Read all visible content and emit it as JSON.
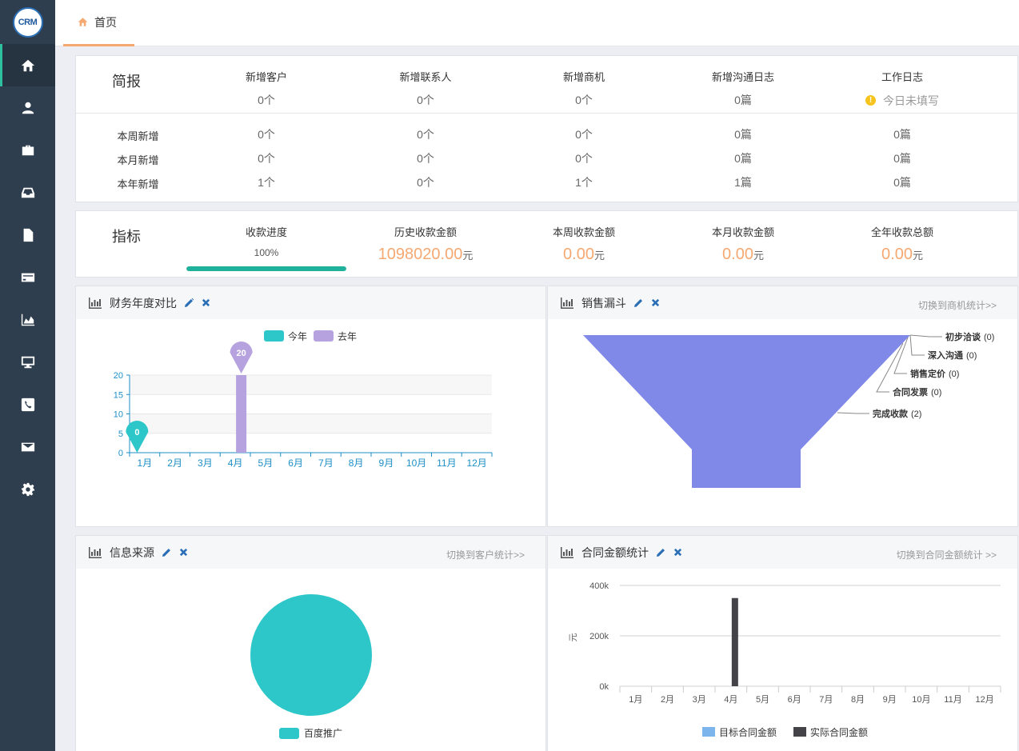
{
  "logo": "CRM",
  "tab": {
    "home": "首页"
  },
  "brief": {
    "title": "简报",
    "headers": [
      "新增客户",
      "新增联系人",
      "新增商机",
      "新增沟通日志",
      "工作日志"
    ],
    "today": [
      "0个",
      "0个",
      "0个",
      "0篇"
    ],
    "worklog_status": "今日未填写",
    "rows": [
      {
        "label": "本周新增",
        "values": [
          "0个",
          "0个",
          "0个",
          "0篇",
          "0篇"
        ]
      },
      {
        "label": "本月新增",
        "values": [
          "0个",
          "0个",
          "0个",
          "0篇",
          "0篇"
        ]
      },
      {
        "label": "本年新增",
        "values": [
          "1个",
          "0个",
          "1个",
          "1篇",
          "0篇"
        ]
      }
    ]
  },
  "kpi": {
    "title": "指标",
    "headers": [
      "收款进度",
      "历史收款金额",
      "本周收款金额",
      "本月收款金额",
      "全年收款总额"
    ],
    "progress_text": "100%",
    "progress_value": 100,
    "values": [
      "1098020.00",
      "0.00",
      "0.00",
      "0.00"
    ],
    "unit": "元"
  },
  "finance": {
    "title": "财务年度对比",
    "legend": [
      "今年",
      "去年"
    ],
    "colors": {
      "this_year": "#2ec7c9",
      "last_year": "#b6a2de"
    },
    "chart_data": {
      "type": "bar",
      "categories": [
        "1月",
        "2月",
        "3月",
        "4月",
        "5月",
        "6月",
        "7月",
        "8月",
        "9月",
        "10月",
        "11月",
        "12月"
      ],
      "series": [
        {
          "name": "今年",
          "values": [
            0,
            0,
            0,
            0,
            0,
            0,
            0,
            0,
            0,
            0,
            0,
            0
          ]
        },
        {
          "name": "去年",
          "values": [
            0,
            0,
            0,
            20,
            0,
            0,
            0,
            0,
            0,
            0,
            0,
            0
          ]
        }
      ],
      "yticks": [
        "20",
        "15",
        "10",
        "5",
        "0"
      ],
      "ylim": [
        0,
        20
      ],
      "markers": [
        {
          "series": "今年",
          "label": "0"
        },
        {
          "series": "去年",
          "label": "20"
        }
      ]
    }
  },
  "funnel": {
    "title": "销售漏斗",
    "switch": "切换到商机统计>>",
    "color": "#8088e8",
    "chart_data": {
      "type": "funnel",
      "stages": [
        {
          "name": "初步洽谈",
          "value": 0,
          "count_label": "(0)"
        },
        {
          "name": "深入沟通",
          "value": 0,
          "count_label": "(0)"
        },
        {
          "name": "销售定价",
          "value": 0,
          "count_label": "(0)"
        },
        {
          "name": "合同发票",
          "value": 0,
          "count_label": "(0)"
        },
        {
          "name": "完成收款",
          "value": 2,
          "count_label": "(2)"
        }
      ]
    }
  },
  "source": {
    "title": "信息来源",
    "switch": "切换到客户统计>>",
    "chart_data": {
      "type": "pie",
      "slices": [
        {
          "name": "百度推广",
          "value": 100,
          "color": "#2ec7c9"
        }
      ]
    }
  },
  "contract": {
    "title": "合同金额统计",
    "switch": "切换到合同金额统计 >>",
    "ylabel": "元",
    "legend": [
      "目标合同金额",
      "实际合同金额"
    ],
    "colors": {
      "target": "#7cb5ec",
      "actual": "#434348"
    },
    "chart_data": {
      "type": "bar",
      "categories": [
        "1月",
        "2月",
        "3月",
        "4月",
        "5月",
        "6月",
        "7月",
        "8月",
        "9月",
        "10月",
        "11月",
        "12月"
      ],
      "series": [
        {
          "name": "目标合同金额",
          "values": [
            0,
            0,
            0,
            0,
            0,
            0,
            0,
            0,
            0,
            0,
            0,
            0
          ]
        },
        {
          "name": "实际合同金额",
          "values": [
            0,
            0,
            0,
            350000,
            0,
            0,
            0,
            0,
            0,
            0,
            0,
            0
          ]
        }
      ],
      "yticks": [
        "400k",
        "200k",
        "0k"
      ],
      "ylim": [
        0,
        400000
      ]
    }
  }
}
